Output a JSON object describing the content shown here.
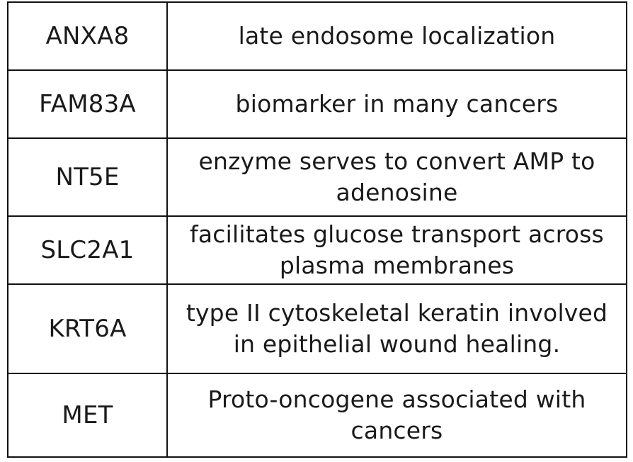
{
  "table": {
    "rows": [
      {
        "gene": "ANXA8",
        "description": "late endosome localization"
      },
      {
        "gene": "FAM83A",
        "description": "biomarker in many cancers"
      },
      {
        "gene": "NT5E",
        "description": "enzyme serves to convert AMP to adenosine"
      },
      {
        "gene": "SLC2A1",
        "description": "facilitates glucose transport across plasma membranes"
      },
      {
        "gene": "KRT6A",
        "description": "type II cytoskeletal keratin involved in epithelial wound healing."
      },
      {
        "gene": "MET",
        "description": "Proto-oncogene associated with cancers"
      }
    ]
  }
}
